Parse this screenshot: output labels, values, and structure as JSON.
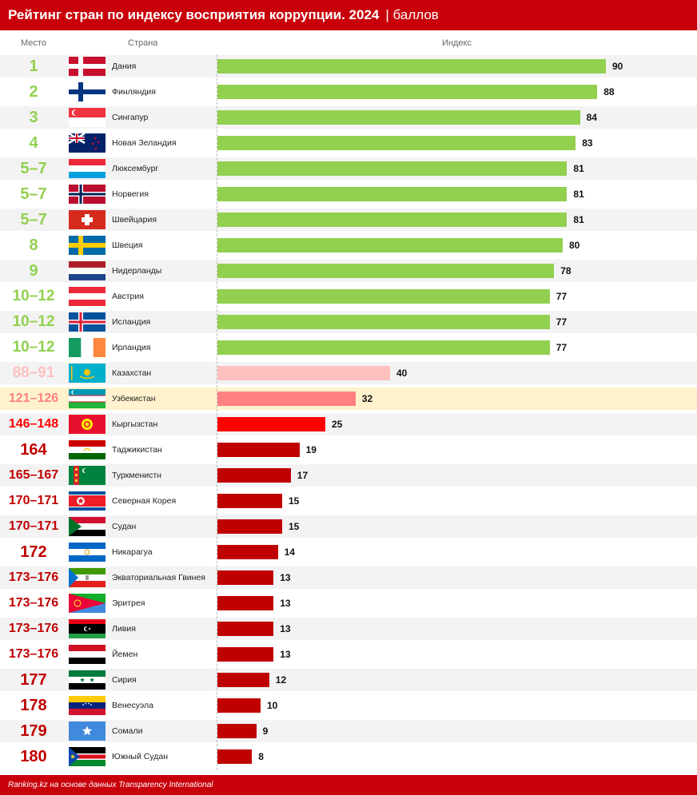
{
  "header": {
    "title": "Рейтинг стран по индексу восприятия коррупции. 2024",
    "unit": "| баллов"
  },
  "columns": {
    "rank": "Место",
    "country": "Страна",
    "index": "Индекс"
  },
  "footer": {
    "source": "Ranking.kz на основе данных Transparency International"
  },
  "colors": {
    "top": "#92d050",
    "kazakhstan": "#ffc0c0",
    "uzbekistan": "#ff8080",
    "kyrgyzstan": "#ff0000",
    "bottom": "#c00000",
    "highlight_row": "#fff2cc",
    "brand": "#c8000a"
  },
  "chart_data": {
    "type": "bar",
    "orientation": "horizontal",
    "title": "Рейтинг стран по индексу восприятия коррупции. 2024",
    "xlabel": "Индекс",
    "xlim": [
      0,
      100
    ],
    "rows": [
      {
        "rank": "1",
        "country": "Дания",
        "flag": "denmark-flag",
        "value": 90,
        "group": "top"
      },
      {
        "rank": "2",
        "country": "Финляндия",
        "flag": "finland-flag",
        "value": 88,
        "group": "top"
      },
      {
        "rank": "3",
        "country": "Сингапур",
        "flag": "singapore-flag",
        "value": 84,
        "group": "top"
      },
      {
        "rank": "4",
        "country": "Новая Зеландия",
        "flag": "new-zealand-flag",
        "value": 83,
        "group": "top"
      },
      {
        "rank": "5–7",
        "country": "Люксембург",
        "flag": "luxembourg-flag",
        "value": 81,
        "group": "top"
      },
      {
        "rank": "5–7",
        "country": "Норвегия",
        "flag": "norway-flag",
        "value": 81,
        "group": "top"
      },
      {
        "rank": "5–7",
        "country": "Швейцария",
        "flag": "switzerland-flag",
        "value": 81,
        "group": "top"
      },
      {
        "rank": "8",
        "country": "Швеция",
        "flag": "sweden-flag",
        "value": 80,
        "group": "top"
      },
      {
        "rank": "9",
        "country": "Нидерланды",
        "flag": "netherlands-flag",
        "value": 78,
        "group": "top"
      },
      {
        "rank": "10–12",
        "country": "Австрия",
        "flag": "austria-flag",
        "value": 77,
        "group": "top"
      },
      {
        "rank": "10–12",
        "country": "Исландия",
        "flag": "iceland-flag",
        "value": 77,
        "group": "top"
      },
      {
        "rank": "10–12",
        "country": "Ирландия",
        "flag": "ireland-flag",
        "value": 77,
        "group": "top"
      },
      {
        "rank": "88–91",
        "country": "Казахстан",
        "flag": "kazakhstan-flag",
        "value": 40,
        "group": "kazakhstan"
      },
      {
        "rank": "121–126",
        "country": "Узбекистан",
        "flag": "uzbekistan-flag",
        "value": 32,
        "group": "uzbekistan"
      },
      {
        "rank": "146–148",
        "country": "Кыргызстан",
        "flag": "kyrgyzstan-flag",
        "value": 25,
        "group": "kyrgyzstan"
      },
      {
        "rank": "164",
        "country": "Таджикистан",
        "flag": "tajikistan-flag",
        "value": 19,
        "group": "bottom"
      },
      {
        "rank": "165–167",
        "country": "Туркменистн",
        "flag": "turkmenistan-flag",
        "value": 17,
        "group": "bottom"
      },
      {
        "rank": "170–171",
        "country": "Северная Корея",
        "flag": "north-korea-flag",
        "value": 15,
        "group": "bottom"
      },
      {
        "rank": "170–171",
        "country": "Судан",
        "flag": "sudan-flag",
        "value": 15,
        "group": "bottom"
      },
      {
        "rank": "172",
        "country": "Никарагуа",
        "flag": "nicaragua-flag",
        "value": 14,
        "group": "bottom"
      },
      {
        "rank": "173–176",
        "country": "Экваториальная Гвинея",
        "flag": "equatorial-guinea-flag",
        "value": 13,
        "group": "bottom"
      },
      {
        "rank": "173–176",
        "country": "Эритрея",
        "flag": "eritrea-flag",
        "value": 13,
        "group": "bottom"
      },
      {
        "rank": "173–176",
        "country": "Ливия",
        "flag": "libya-flag",
        "value": 13,
        "group": "bottom"
      },
      {
        "rank": "173–176",
        "country": "Йемен",
        "flag": "yemen-flag",
        "value": 13,
        "group": "bottom"
      },
      {
        "rank": "177",
        "country": "Сирия",
        "flag": "syria-flag",
        "value": 12,
        "group": "bottom"
      },
      {
        "rank": "178",
        "country": "Венесуэла",
        "flag": "venezuela-flag",
        "value": 10,
        "group": "bottom"
      },
      {
        "rank": "179",
        "country": "Сомали",
        "flag": "somalia-flag",
        "value": 9,
        "group": "bottom"
      },
      {
        "rank": "180",
        "country": "Южный Судан",
        "flag": "south-sudan-flag",
        "value": 8,
        "group": "bottom"
      }
    ]
  }
}
